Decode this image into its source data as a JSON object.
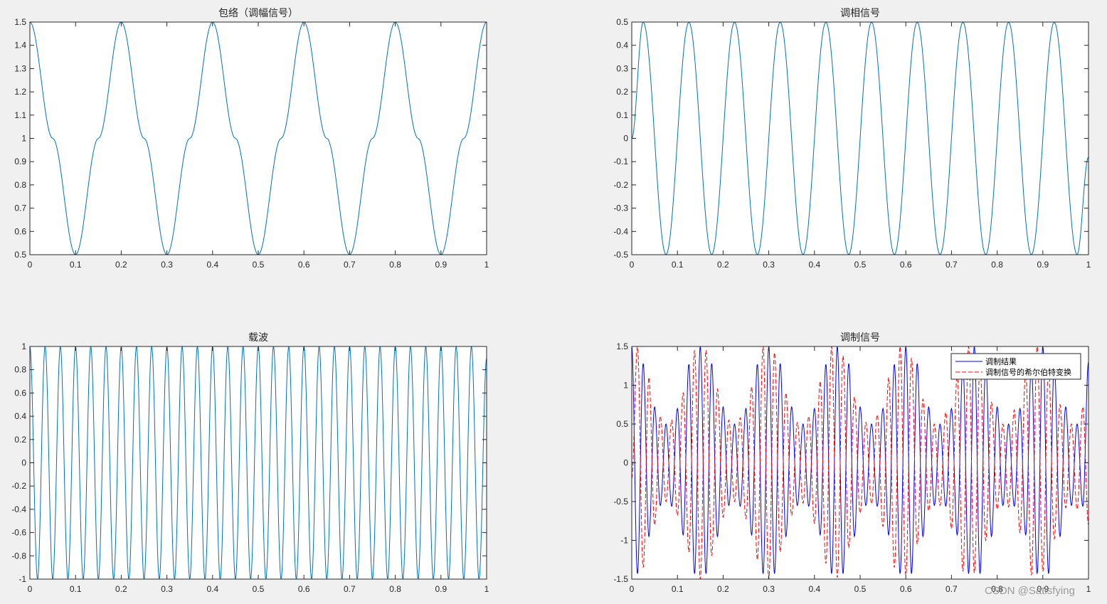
{
  "figure": {
    "background": "#f0f0f0",
    "watermark": "CSDN @Satisfying"
  },
  "chart_data": [
    {
      "type": "line",
      "title": "包络（调幅信号）",
      "xlim": [
        0,
        1
      ],
      "ylim": [
        0.5,
        1.5
      ],
      "xticks": [
        "0",
        "0.1",
        "0.2",
        "0.3",
        "0.4",
        "0.5",
        "0.6",
        "0.7",
        "0.8",
        "0.9",
        "1"
      ],
      "yticks": [
        "0.5",
        "0.6",
        "0.7",
        "0.8",
        "0.9",
        "1",
        "1.1",
        "1.2",
        "1.3",
        "1.4",
        "1.5"
      ],
      "series": [
        {
          "color": "#0072bd",
          "dash": "solid",
          "x": [
            0,
            0.05,
            0.1,
            0.15,
            0.2,
            0.25,
            0.3,
            0.35,
            0.4,
            0.45,
            0.5,
            0.55,
            0.6,
            0.65,
            0.7,
            0.75,
            0.8,
            0.85,
            0.9,
            0.95,
            1
          ],
          "y": [
            1.5,
            1.0,
            0.5,
            1.0,
            1.5,
            1.0,
            0.5,
            1.0,
            1.5,
            1.0,
            0.5,
            1.0,
            1.5,
            1.0,
            0.5,
            1.0,
            1.5,
            1.0,
            0.5,
            1.0,
            1.5
          ]
        }
      ],
      "grid": false
    },
    {
      "type": "line",
      "title": "调相信号",
      "xlim": [
        0,
        1
      ],
      "ylim": [
        -0.5,
        0.5
      ],
      "xticks": [
        "0",
        "0.1",
        "0.2",
        "0.3",
        "0.4",
        "0.5",
        "0.6",
        "0.7",
        "0.8",
        "0.9",
        "1"
      ],
      "yticks": [
        "-0.5",
        "-0.4",
        "-0.3",
        "-0.2",
        "-0.1",
        "0",
        "0.1",
        "0.2",
        "0.3",
        "0.4",
        "0.5"
      ],
      "series": [
        {
          "color": "#0072bd",
          "dash": "solid",
          "x": [
            0,
            0.025,
            0.075,
            0.125,
            0.175,
            0.225,
            0.275,
            0.325,
            0.375,
            0.425,
            0.475,
            0.525,
            0.575,
            0.625,
            0.675,
            0.725,
            0.775,
            0.825,
            0.875,
            0.925,
            0.975,
            1
          ],
          "y": [
            0,
            0.5,
            -0.5,
            0.5,
            -0.5,
            0.5,
            -0.5,
            0.5,
            -0.5,
            0.5,
            -0.5,
            0.5,
            -0.5,
            0.5,
            -0.5,
            0.5,
            -0.5,
            0.5,
            -0.5,
            0.5,
            -0.5,
            -0.08
          ]
        }
      ],
      "grid": false
    },
    {
      "type": "line",
      "title": "载波",
      "xlim": [
        0,
        1
      ],
      "ylim": [
        -1,
        1
      ],
      "xticks": [
        "0",
        "0.1",
        "0.2",
        "0.3",
        "0.4",
        "0.5",
        "0.6",
        "0.7",
        "0.8",
        "0.9",
        "1"
      ],
      "yticks": [
        "-1",
        "-0.8",
        "-0.6",
        "-0.4",
        "-0.2",
        "0",
        "0.2",
        "0.4",
        "0.6",
        "0.8",
        "1"
      ],
      "series": [
        {
          "color": "#0072bd",
          "dash": "solid",
          "x": [
            0,
            0.0167,
            0.0333,
            0.05,
            0.0667,
            0.0833,
            0.1,
            0.1167,
            0.1333,
            0.15,
            0.1667,
            0.1833,
            0.2,
            0.2167,
            0.2333,
            0.25,
            0.2667,
            0.2833,
            0.3,
            0.3167,
            0.3333,
            0.35,
            0.3667,
            0.3833,
            0.4,
            0.4167,
            0.4333,
            0.45,
            0.4667,
            0.4833,
            0.5,
            0.5167,
            0.5333,
            0.55,
            0.5667,
            0.5833,
            0.6,
            0.6167,
            0.6333,
            0.65,
            0.6667,
            0.6833,
            0.7,
            0.7167,
            0.7333,
            0.75,
            0.7667,
            0.7833,
            0.8,
            0.8167,
            0.8333,
            0.85,
            0.8667,
            0.8833,
            0.9,
            0.9167,
            0.9333,
            0.95,
            0.9667,
            0.9833,
            1
          ],
          "y": [
            1,
            -1,
            1,
            -1,
            1,
            -1,
            1,
            -1,
            1,
            -1,
            1,
            -1,
            1,
            -1,
            1,
            -1,
            1,
            -1,
            1,
            -1,
            1,
            -1,
            1,
            -1,
            1,
            -1,
            1,
            -1,
            1,
            -1,
            1,
            -1,
            1,
            -1,
            1,
            -1,
            1,
            -1,
            1,
            -1,
            1,
            -1,
            1,
            -1,
            1,
            -1,
            1,
            -1,
            1,
            -1,
            1,
            -1,
            1,
            -1,
            1,
            -1,
            1,
            -1,
            1,
            -1,
            0.9
          ]
        }
      ],
      "grid": false
    },
    {
      "type": "line",
      "title": "调制信号",
      "xlim": [
        0,
        1
      ],
      "ylim": [
        -1.5,
        1.5
      ],
      "xticks": [
        "0",
        "0.1",
        "0.2",
        "0.3",
        "0.4",
        "0.5",
        "0.6",
        "0.7",
        "0.8",
        "0.9",
        "1"
      ],
      "yticks": [
        "-1.5",
        "-1",
        "-0.5",
        "0",
        "0.5",
        "1",
        "1.5"
      ],
      "legend": {
        "position": "top-right",
        "entries": [
          "调制结果",
          "调制信号的希尔伯特变换"
        ]
      },
      "series": [
        {
          "name": "调制结果",
          "color": "#0000ff",
          "dash": "solid",
          "x": [
            0,
            0.0125,
            0.025,
            0.0375,
            0.05,
            0.0625,
            0.075,
            0.0875,
            0.1,
            0.1125,
            0.125,
            0.1375,
            0.15,
            0.1625,
            0.175,
            0.1875,
            0.2,
            0.2125,
            0.225,
            0.2375,
            0.25,
            0.2625,
            0.275,
            0.2875,
            0.3,
            0.3125,
            0.325,
            0.3375,
            0.35,
            0.3625,
            0.375,
            0.3875,
            0.4,
            0.4125,
            0.425,
            0.4375,
            0.45,
            0.4625,
            0.475,
            0.4875,
            0.5,
            0.5125,
            0.525,
            0.5375,
            0.55,
            0.5625,
            0.575,
            0.5875,
            0.6,
            0.6125,
            0.625,
            0.6375,
            0.65,
            0.6625,
            0.675,
            0.6875,
            0.7,
            0.7125,
            0.725,
            0.7375,
            0.75,
            0.7625,
            0.775,
            0.7875,
            0.8,
            0.8125,
            0.825,
            0.8375,
            0.85,
            0.8625,
            0.875,
            0.8875,
            0.9,
            0.9125,
            0.925,
            0.9375,
            0.95,
            0.9625,
            0.975,
            0.9875,
            1
          ],
          "y": [
            1.5,
            -1.43,
            1.28,
            -0.95,
            0.72,
            -0.55,
            0.5,
            -0.56,
            0.7,
            -0.93,
            1.27,
            -1.43,
            1.5,
            -1.43,
            1.28,
            -0.95,
            0.72,
            -0.55,
            0.5,
            -0.56,
            0.7,
            -0.93,
            1.27,
            -1.43,
            1.5,
            -1.43,
            1.28,
            -0.95,
            0.72,
            -0.55,
            0.5,
            -0.56,
            0.7,
            -0.93,
            1.27,
            -1.43,
            1.5,
            -1.43,
            1.28,
            -0.95,
            0.72,
            -0.55,
            0.5,
            -0.56,
            0.7,
            -0.93,
            1.27,
            -1.43,
            1.5,
            -1.43,
            1.28,
            -0.95,
            0.72,
            -0.55,
            0.5,
            -0.56,
            0.7,
            -0.93,
            1.27,
            -1.43,
            1.5,
            -1.43,
            1.28,
            -0.95,
            0.72,
            -0.55,
            0.5,
            -0.56,
            0.7,
            -0.93,
            1.27,
            -1.43,
            1.5,
            -1.43,
            1.28,
            -0.95,
            0.72,
            -0.55,
            0.5,
            -0.56,
            1.3
          ]
        },
        {
          "name": "调制信号的希尔伯特变换",
          "color": "#ff0000",
          "dash": "dashed",
          "x": [
            0,
            0.0125,
            0.025,
            0.0375,
            0.05,
            0.0625,
            0.075,
            0.0875,
            0.1,
            0.1125,
            0.125,
            0.1375,
            0.15,
            0.1625,
            0.175,
            0.1875,
            0.2,
            0.2125,
            0.225,
            0.2375,
            0.25,
            0.2625,
            0.275,
            0.2875,
            0.3,
            0.3125,
            0.325,
            0.3375,
            0.35,
            0.3625,
            0.375,
            0.3875,
            0.4,
            0.4125,
            0.425,
            0.4375,
            0.45,
            0.4625,
            0.475,
            0.4875,
            0.5,
            0.5125,
            0.525,
            0.5375,
            0.55,
            0.5625,
            0.575,
            0.5875,
            0.6,
            0.6125,
            0.625,
            0.6375,
            0.65,
            0.6625,
            0.675,
            0.6875,
            0.7,
            0.7125,
            0.725,
            0.7375,
            0.75,
            0.7625,
            0.775,
            0.7875,
            0.8,
            0.8125,
            0.825,
            0.8375,
            0.85,
            0.8625,
            0.875,
            0.8875,
            0.9,
            0.9125,
            0.925,
            0.9375,
            0.95,
            0.9625,
            0.975,
            0.9875,
            1
          ],
          "y": [
            -0.2,
            1.5,
            -1.35,
            1.1,
            -0.8,
            0.6,
            -0.5,
            0.55,
            -0.68,
            0.9,
            -1.15,
            1.45,
            -1.5,
            1.45,
            -1.2,
            0.95,
            -0.7,
            0.55,
            -0.5,
            0.58,
            -0.72,
            0.98,
            -1.25,
            1.5,
            -1.5,
            1.42,
            -1.15,
            0.9,
            -0.68,
            0.52,
            -0.52,
            0.6,
            -0.78,
            1.05,
            -1.3,
            1.5,
            -1.48,
            1.38,
            -1.1,
            0.85,
            -0.65,
            0.52,
            -0.53,
            0.62,
            -0.82,
            1.1,
            -1.35,
            1.5,
            -1.45,
            1.35,
            -1.05,
            0.82,
            -0.62,
            0.5,
            -0.55,
            0.65,
            -0.85,
            1.15,
            -1.4,
            1.5,
            -1.42,
            1.3,
            -1.0,
            0.78,
            -0.6,
            0.5,
            -0.57,
            0.68,
            -0.9,
            1.2,
            -1.45,
            1.5,
            -1.4,
            1.25,
            -0.98,
            0.75,
            -0.58,
            0.5,
            -0.6,
            0.72,
            -0.8
          ]
        }
      ],
      "grid": false
    }
  ]
}
